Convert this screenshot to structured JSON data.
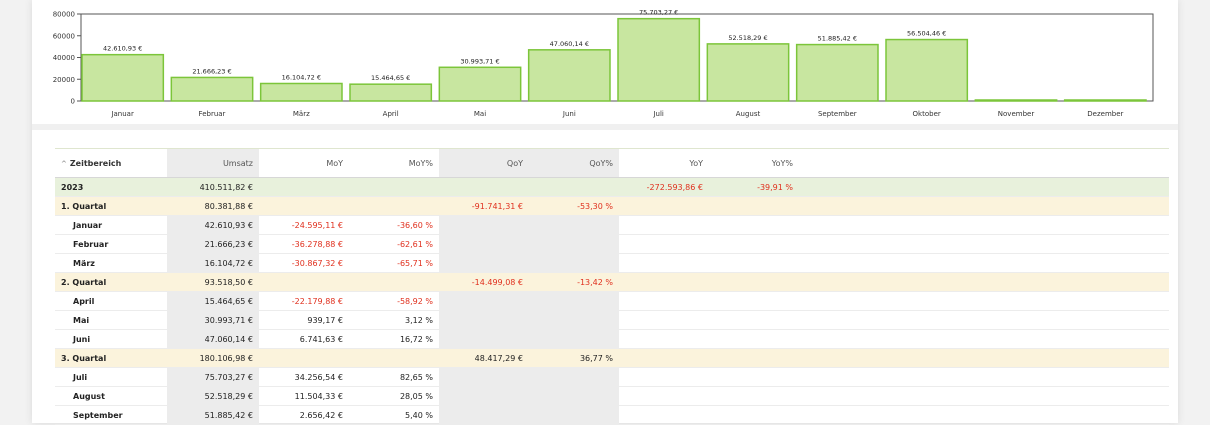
{
  "chart_data": {
    "type": "bar",
    "categories": [
      "Januar",
      "Februar",
      "März",
      "April",
      "Mai",
      "Juni",
      "Juli",
      "August",
      "September",
      "Oktober",
      "November",
      "Dezember"
    ],
    "values": [
      42610.93,
      21666.23,
      16104.72,
      15464.65,
      30993.71,
      47060.14,
      75703.27,
      52518.29,
      51885.42,
      56504.46,
      0,
      0
    ],
    "data_labels": [
      "42.610,93 €",
      "21.666,23 €",
      "16.104,72 €",
      "15.464,65 €",
      "30.993,71 €",
      "47.060,14 €",
      "75.703,27 €",
      "52.518,29 €",
      "51.885,42 €",
      "56.504,46 €",
      "",
      ""
    ],
    "y_ticks": [
      "0",
      "20000",
      "40000",
      "60000",
      "80000"
    ],
    "ylim": [
      0,
      80000
    ],
    "bar_color": "#c8e6a0",
    "bar_border": "#7cc53a"
  },
  "table": {
    "sort_icon": "chevron-up-icon",
    "headers": {
      "zeitbereich": "Zeitbereich",
      "umsatz": "Umsatz",
      "moy": "MoY",
      "moy_pct": "MoY%",
      "qoy": "QoY",
      "qoy_pct": "QoY%",
      "yoy": "YoY",
      "yoy_pct": "YoY%"
    },
    "rows": [
      {
        "type": "year",
        "label": "2023",
        "umsatz": "410.511,82 €",
        "moy": "",
        "moy_pct": "",
        "qoy": "",
        "qoy_pct": "",
        "yoy": "-272.593,86 €",
        "yoy_pct": "-39,91 %"
      },
      {
        "type": "quarter",
        "label": "1. Quartal",
        "umsatz": "80.381,88 €",
        "moy": "",
        "moy_pct": "",
        "qoy": "-91.741,31 €",
        "qoy_pct": "-53,30 %",
        "yoy": "",
        "yoy_pct": ""
      },
      {
        "type": "month",
        "label": "Januar",
        "umsatz": "42.610,93 €",
        "moy": "-24.595,11 €",
        "moy_pct": "-36,60 %",
        "qoy": "",
        "qoy_pct": "",
        "yoy": "",
        "yoy_pct": ""
      },
      {
        "type": "month",
        "label": "Februar",
        "umsatz": "21.666,23 €",
        "moy": "-36.278,88 €",
        "moy_pct": "-62,61 %",
        "qoy": "",
        "qoy_pct": "",
        "yoy": "",
        "yoy_pct": ""
      },
      {
        "type": "month",
        "label": "März",
        "umsatz": "16.104,72 €",
        "moy": "-30.867,32 €",
        "moy_pct": "-65,71 %",
        "qoy": "",
        "qoy_pct": "",
        "yoy": "",
        "yoy_pct": ""
      },
      {
        "type": "quarter",
        "label": "2. Quartal",
        "umsatz": "93.518,50 €",
        "moy": "",
        "moy_pct": "",
        "qoy": "-14.499,08 €",
        "qoy_pct": "-13,42 %",
        "yoy": "",
        "yoy_pct": ""
      },
      {
        "type": "month",
        "label": "April",
        "umsatz": "15.464,65 €",
        "moy": "-22.179,88 €",
        "moy_pct": "-58,92 %",
        "qoy": "",
        "qoy_pct": "",
        "yoy": "",
        "yoy_pct": ""
      },
      {
        "type": "month",
        "label": "Mai",
        "umsatz": "30.993,71 €",
        "moy": "939,17 €",
        "moy_pct": "3,12 %",
        "qoy": "",
        "qoy_pct": "",
        "yoy": "",
        "yoy_pct": ""
      },
      {
        "type": "month",
        "label": "Juni",
        "umsatz": "47.060,14 €",
        "moy": "6.741,63 €",
        "moy_pct": "16,72 %",
        "qoy": "",
        "qoy_pct": "",
        "yoy": "",
        "yoy_pct": ""
      },
      {
        "type": "quarter",
        "label": "3. Quartal",
        "umsatz": "180.106,98 €",
        "moy": "",
        "moy_pct": "",
        "qoy": "48.417,29 €",
        "qoy_pct": "36,77 %",
        "yoy": "",
        "yoy_pct": ""
      },
      {
        "type": "month",
        "label": "Juli",
        "umsatz": "75.703,27 €",
        "moy": "34.256,54 €",
        "moy_pct": "82,65 %",
        "qoy": "",
        "qoy_pct": "",
        "yoy": "",
        "yoy_pct": ""
      },
      {
        "type": "month",
        "label": "August",
        "umsatz": "52.518,29 €",
        "moy": "11.504,33 €",
        "moy_pct": "28,05 %",
        "qoy": "",
        "qoy_pct": "",
        "yoy": "",
        "yoy_pct": ""
      },
      {
        "type": "month",
        "label": "September",
        "umsatz": "51.885,42 €",
        "moy": "2.656,42 €",
        "moy_pct": "5,40 %",
        "qoy": "",
        "qoy_pct": "",
        "yoy": "",
        "yoy_pct": ""
      }
    ]
  }
}
